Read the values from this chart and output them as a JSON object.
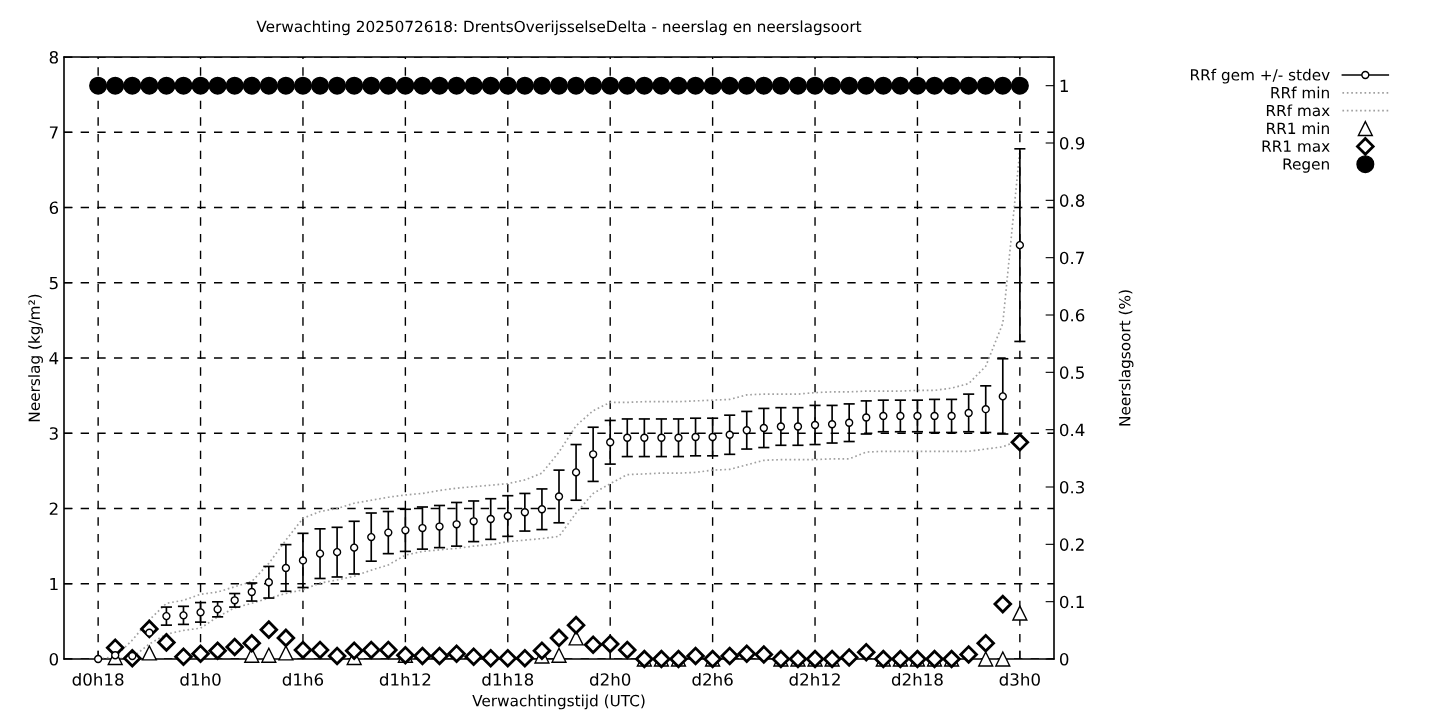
{
  "chart_data": {
    "type": "scatter",
    "title": "Verwachting 2025072618: DrentsOverijsselseDelta - neerslag en neerslagsoort",
    "xlabel": "Verwachtingstijd (UTC)",
    "ylabel": "Neerslag (kg/m²)",
    "y2label": "Neerslagsoort (%)",
    "categories": [
      "d0h18",
      null,
      null,
      null,
      null,
      null,
      "d1h0",
      null,
      null,
      null,
      null,
      null,
      "d1h6",
      null,
      null,
      null,
      null,
      null,
      "d1h12",
      null,
      null,
      null,
      null,
      null,
      "d1h18",
      null,
      null,
      null,
      null,
      null,
      "d2h0",
      null,
      null,
      null,
      null,
      null,
      "d2h6",
      null,
      null,
      null,
      null,
      null,
      "d2h12",
      null,
      null,
      null,
      null,
      null,
      "d2h18",
      null,
      null,
      null,
      null,
      null,
      "d3h0"
    ],
    "ylim": [
      0,
      8
    ],
    "yticks": [
      0,
      1,
      2,
      3,
      4,
      5,
      6,
      7,
      8
    ],
    "y2lim": [
      0,
      1.05
    ],
    "y2ticks": [
      0,
      0.1,
      0.2,
      0.3,
      0.4,
      0.5,
      0.6,
      0.7,
      0.8,
      0.9,
      1
    ],
    "grid": true,
    "legend": "top right",
    "series": [
      {
        "name": "RRf gem +/- stdev",
        "marker": "circle",
        "color": "#000000",
        "values": [
          0.0,
          0.05,
          0.04,
          0.35,
          0.57,
          0.58,
          0.62,
          0.66,
          0.78,
          0.89,
          1.02,
          1.21,
          1.31,
          1.4,
          1.42,
          1.48,
          1.62,
          1.68,
          1.71,
          1.74,
          1.76,
          1.79,
          1.83,
          1.86,
          1.9,
          1.95,
          1.99,
          2.16,
          2.48,
          2.72,
          2.88,
          2.94,
          2.94,
          2.94,
          2.94,
          2.95,
          2.95,
          2.98,
          3.04,
          3.07,
          3.09,
          3.09,
          3.11,
          3.12,
          3.14,
          3.21,
          3.23,
          3.23,
          3.23,
          3.23,
          3.23,
          3.27,
          3.32,
          3.49,
          5.5
        ],
        "errors": [
          null,
          null,
          null,
          null,
          0.12,
          0.12,
          0.13,
          0.1,
          0.09,
          0.12,
          0.21,
          0.31,
          0.36,
          0.33,
          0.33,
          0.35,
          0.32,
          0.28,
          0.28,
          0.28,
          0.28,
          0.29,
          0.27,
          0.27,
          0.27,
          0.25,
          0.27,
          0.35,
          0.37,
          0.36,
          0.29,
          0.25,
          0.25,
          0.25,
          0.25,
          0.25,
          0.25,
          0.26,
          0.25,
          0.26,
          0.25,
          0.25,
          0.26,
          0.25,
          0.25,
          0.22,
          0.21,
          0.21,
          0.21,
          0.22,
          0.22,
          0.25,
          0.31,
          0.5,
          1.28
        ]
      },
      {
        "name": "RRf min",
        "type": "line",
        "line_style": "dotted",
        "color": "#a0a0a0",
        "values": [
          0.0,
          0.0,
          0.02,
          0.2,
          0.33,
          0.38,
          0.41,
          0.56,
          0.68,
          0.74,
          0.81,
          0.87,
          0.92,
          1.01,
          1.05,
          1.1,
          1.18,
          1.25,
          1.38,
          1.43,
          1.45,
          1.47,
          1.5,
          1.52,
          1.56,
          1.58,
          1.6,
          1.63,
          1.94,
          2.2,
          2.33,
          2.45,
          2.46,
          2.47,
          2.47,
          2.48,
          2.51,
          2.52,
          2.58,
          2.64,
          2.65,
          2.65,
          2.65,
          2.66,
          2.66,
          2.75,
          2.76,
          2.76,
          2.76,
          2.76,
          2.76,
          2.76,
          2.79,
          2.82,
          2.91
        ]
      },
      {
        "name": "RRf max",
        "type": "line",
        "line_style": "dotted",
        "color": "#a0a0a0",
        "values": [
          0.0,
          0.03,
          0.25,
          0.52,
          0.74,
          0.78,
          0.86,
          0.89,
          0.96,
          1.03,
          1.27,
          1.58,
          1.87,
          1.96,
          2.0,
          2.07,
          2.11,
          2.15,
          2.18,
          2.2,
          2.24,
          2.27,
          2.29,
          2.31,
          2.33,
          2.38,
          2.47,
          2.75,
          3.1,
          3.3,
          3.41,
          3.41,
          3.42,
          3.42,
          3.42,
          3.43,
          3.44,
          3.45,
          3.51,
          3.52,
          3.52,
          3.52,
          3.54,
          3.55,
          3.55,
          3.56,
          3.56,
          3.56,
          3.57,
          3.57,
          3.6,
          3.66,
          3.89,
          4.46,
          6.76
        ]
      },
      {
        "name": "RR1 min",
        "marker": "triangle",
        "color": "#000000",
        "values": [
          null,
          0.02,
          null,
          0.08,
          null,
          null,
          null,
          null,
          null,
          0.05,
          0.05,
          0.08,
          null,
          null,
          null,
          0.02,
          null,
          null,
          0.05,
          null,
          null,
          null,
          null,
          null,
          null,
          null,
          0.04,
          0.05,
          0.28,
          null,
          null,
          null,
          0.0,
          0.0,
          0.0,
          null,
          0.0,
          null,
          null,
          null,
          0.0,
          0.0,
          0.0,
          0.0,
          null,
          null,
          0.0,
          0.0,
          0.0,
          0.0,
          0.0,
          null,
          0.0,
          0.0,
          0.61
        ]
      },
      {
        "name": "RR1 max",
        "marker": "diamond",
        "color": "#000000",
        "values": [
          null,
          0.15,
          0.01,
          0.4,
          0.22,
          0.03,
          0.07,
          0.11,
          0.16,
          0.21,
          0.39,
          0.28,
          0.12,
          0.12,
          0.04,
          0.11,
          0.12,
          0.12,
          0.05,
          0.04,
          0.04,
          0.07,
          0.03,
          0.01,
          0.01,
          0.01,
          0.11,
          0.28,
          0.45,
          0.19,
          0.2,
          0.12,
          0.0,
          0.0,
          0.0,
          0.04,
          0.0,
          0.04,
          0.07,
          0.06,
          0.0,
          0.0,
          0.0,
          0.0,
          0.02,
          0.09,
          0.0,
          0.0,
          0.0,
          0.0,
          0.0,
          0.06,
          0.21,
          0.73,
          2.88
        ]
      },
      {
        "name": "Regen",
        "marker": "circle",
        "axis": "y2",
        "color": "#000000",
        "values": [
          1,
          1,
          1,
          1,
          1,
          1,
          1,
          1,
          1,
          1,
          1,
          1,
          1,
          1,
          1,
          1,
          1,
          1,
          1,
          1,
          1,
          1,
          1,
          1,
          1,
          1,
          1,
          1,
          1,
          1,
          1,
          1,
          1,
          1,
          1,
          1,
          1,
          1,
          1,
          1,
          1,
          1,
          1,
          1,
          1,
          1,
          1,
          1,
          1,
          1,
          1,
          1,
          1,
          1,
          1
        ]
      }
    ]
  }
}
